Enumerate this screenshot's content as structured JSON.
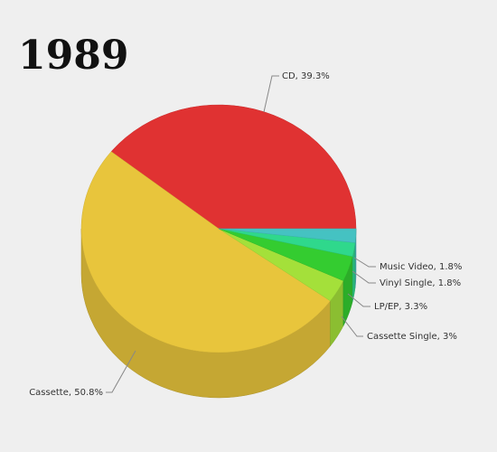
{
  "chart_data": {
    "type": "pie",
    "title": "1989",
    "values": [
      39.3,
      50.8,
      3,
      3.3,
      1.8,
      1.8
    ],
    "value_labels": [
      "CD, 39.3%",
      "Cassette, 50.8%",
      "Cassette Single, 3%",
      "LP/EP, 3.3%",
      "Vinyl Single, 1.8%",
      "Music Video, 1.8%"
    ],
    "colors": [
      "#e03232",
      "#e8c53c",
      "#a4e03a",
      "#34cc30",
      "#2fd88c",
      "#45c2c2"
    ]
  }
}
